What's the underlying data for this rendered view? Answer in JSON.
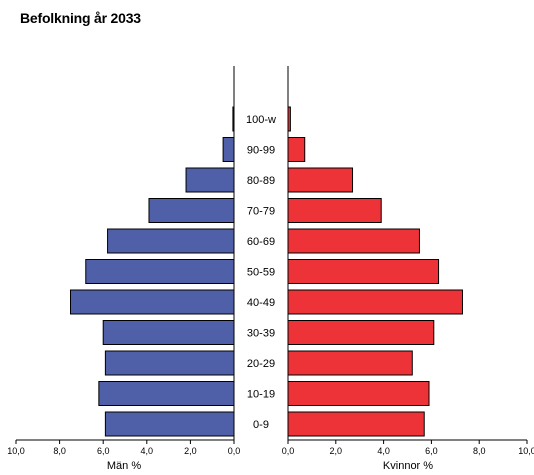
{
  "chart_data": {
    "type": "bar",
    "title": "Befolkning år 2033",
    "categories": [
      "0-9",
      "10-19",
      "20-29",
      "30-39",
      "40-49",
      "50-59",
      "60-69",
      "70-79",
      "80-89",
      "90-99",
      "100-w"
    ],
    "series": [
      {
        "name": "Män %",
        "values": [
          5.9,
          6.2,
          5.9,
          6.0,
          7.5,
          6.8,
          5.8,
          3.9,
          2.2,
          0.5,
          0.05
        ],
        "color": "#4f5fa8"
      },
      {
        "name": "Kvinnor %",
        "values": [
          5.7,
          5.9,
          5.2,
          6.1,
          7.3,
          6.3,
          5.5,
          3.9,
          2.7,
          0.7,
          0.1
        ],
        "color": "#ee3338"
      }
    ],
    "left_axis": {
      "label": "Män %",
      "ticks": [
        "10,0",
        "8,0",
        "6,0",
        "4,0",
        "2,0",
        "0,0"
      ],
      "range": [
        0,
        10
      ],
      "direction": "reversed"
    },
    "right_axis": {
      "label": "Kvinnor %",
      "ticks": [
        "0,0",
        "2,0",
        "4,0",
        "6,0",
        "8,0",
        "10,0"
      ],
      "range": [
        0,
        10
      ]
    },
    "grid": false,
    "legend": "none"
  }
}
